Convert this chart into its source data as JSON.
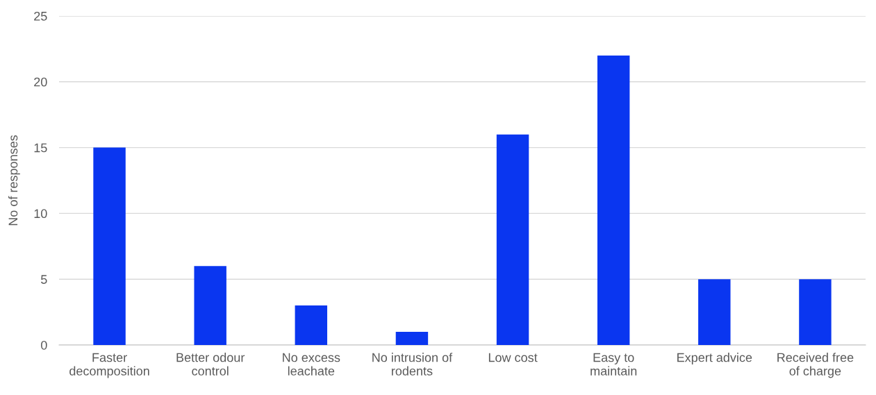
{
  "chart_data": {
    "type": "bar",
    "ylabel": "No of responses",
    "categories": [
      "Faster\ndecomposition",
      "Better odour\ncontrol",
      "No excess\nleachate",
      "No intrusion of\nrodents",
      "Low cost",
      "Easy to\nmaintain",
      "Expert advice",
      "Received free\nof charge"
    ],
    "values": [
      15,
      6,
      3,
      1,
      16,
      22,
      5,
      5
    ],
    "color": "#0a36f0",
    "ylim": [
      0,
      25
    ],
    "yticks": [
      0,
      5,
      10,
      15,
      20,
      25
    ],
    "grid": "y",
    "legend": false
  }
}
